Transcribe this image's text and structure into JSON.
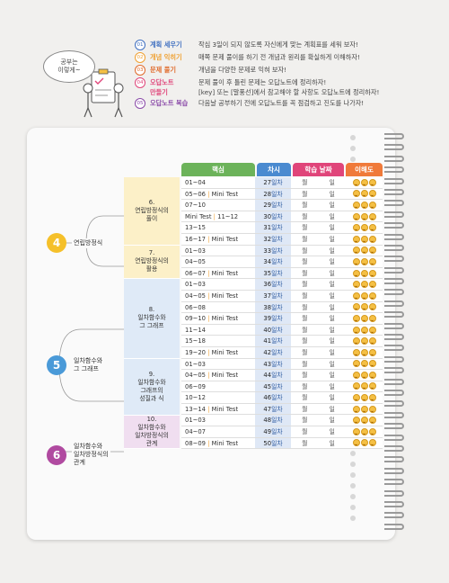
{
  "guide": {
    "bubble": "공부는\n이렇게~",
    "steps": [
      {
        "num": "01",
        "name": "계획 세우기",
        "color": "#3f6fc0",
        "desc": "작심 3일이 되지 않도록 자신에게 맞는 계획표를 세워 보자!"
      },
      {
        "num": "02",
        "name": "개념 익히기",
        "color": "#f0a030",
        "desc": "매쪽 문제 풀이를 하기 전 개념과 원리를 확실하게 이해하자!"
      },
      {
        "num": "03",
        "name": "문제 풀기",
        "color": "#e06a2a",
        "desc": "개념을 다양한 문제로 익혀 보자!"
      },
      {
        "num": "04",
        "name": "오답노트\n만들기",
        "color": "#e0457a",
        "desc": "문제 풀이 후 틀린 문제는 오답노트에 정리하자!\n[key] 또는 [말풍선]에서 참고해야 할 사항도 오답노트에 정리하자!"
      },
      {
        "num": "05",
        "name": "오답노트 복습",
        "color": "#8a4aa8",
        "desc": "다음날 공부하기 전에 오답노트를 꼭 점검하고 진도를 나가자!"
      }
    ]
  },
  "table": {
    "headers": [
      {
        "label": "핵심",
        "color": "#6cb35a"
      },
      {
        "label": "차시",
        "color": "#4a8ad0"
      },
      {
        "label": "학습 날짜",
        "color": "#e0457a"
      },
      {
        "label": "이해도",
        "color": "#f07a3a"
      }
    ],
    "month_label": "월",
    "day_label": "일",
    "unit_label": "일차",
    "rows": [
      {
        "core": "01~04",
        "day": "27"
      },
      {
        "core": "05~06",
        "test": "Mini Test",
        "day": "28"
      },
      {
        "core": "07~10",
        "day": "29"
      },
      {
        "core": "Mini Test",
        "test": "11~12",
        "day": "30"
      },
      {
        "core": "13~15",
        "day": "31"
      },
      {
        "core": "16~17",
        "test": "Mini Test",
        "day": "32"
      },
      {
        "core": "01~03",
        "day": "33"
      },
      {
        "core": "04~05",
        "day": "34"
      },
      {
        "core": "06~07",
        "test": "Mini Test",
        "day": "35"
      },
      {
        "core": "01~03",
        "day": "36"
      },
      {
        "core": "04~05",
        "test": "Mini Test",
        "day": "37"
      },
      {
        "core": "06~08",
        "day": "38"
      },
      {
        "core": "09~10",
        "test": "Mini Test",
        "day": "39"
      },
      {
        "core": "11~14",
        "day": "40"
      },
      {
        "core": "15~18",
        "day": "41"
      },
      {
        "core": "19~20",
        "test": "Mini Test",
        "day": "42"
      },
      {
        "core": "01~03",
        "day": "43"
      },
      {
        "core": "04~05",
        "test": "Mini Test",
        "day": "44"
      },
      {
        "core": "06~09",
        "day": "45"
      },
      {
        "core": "10~12",
        "day": "46"
      },
      {
        "core": "13~14",
        "test": "Mini Test",
        "day": "47"
      },
      {
        "core": "01~03",
        "day": "48"
      },
      {
        "core": "04~07",
        "day": "49"
      },
      {
        "core": "08~09",
        "test": "Mini Test",
        "day": "50"
      }
    ],
    "subsections": [
      {
        "title": "6.\n연립방정식의\n풀이",
        "rows": 6,
        "color": "yellow"
      },
      {
        "title": "7.\n연립방정식의\n활용",
        "rows": 3,
        "color": "yellow"
      },
      {
        "title": "8.\n일차함수와\n그 그래프",
        "rows": 7,
        "color": "blue"
      },
      {
        "title": "9.\n일차함수와\n그래프의\n성질과 식",
        "rows": 5,
        "color": "blue"
      },
      {
        "title": "10.\n일차함수와\n일차방정식의\n관계",
        "rows": 3,
        "color": "purple"
      }
    ],
    "chapters": [
      {
        "num": "4",
        "title": "연립방정식",
        "color": "#f5c02a"
      },
      {
        "num": "5",
        "title": "일차함수와\n그 그래프",
        "color": "#4a9ad8"
      },
      {
        "num": "6",
        "title": "일차함수와\n일차방정식의\n관계",
        "color": "#b04aa0"
      }
    ]
  }
}
